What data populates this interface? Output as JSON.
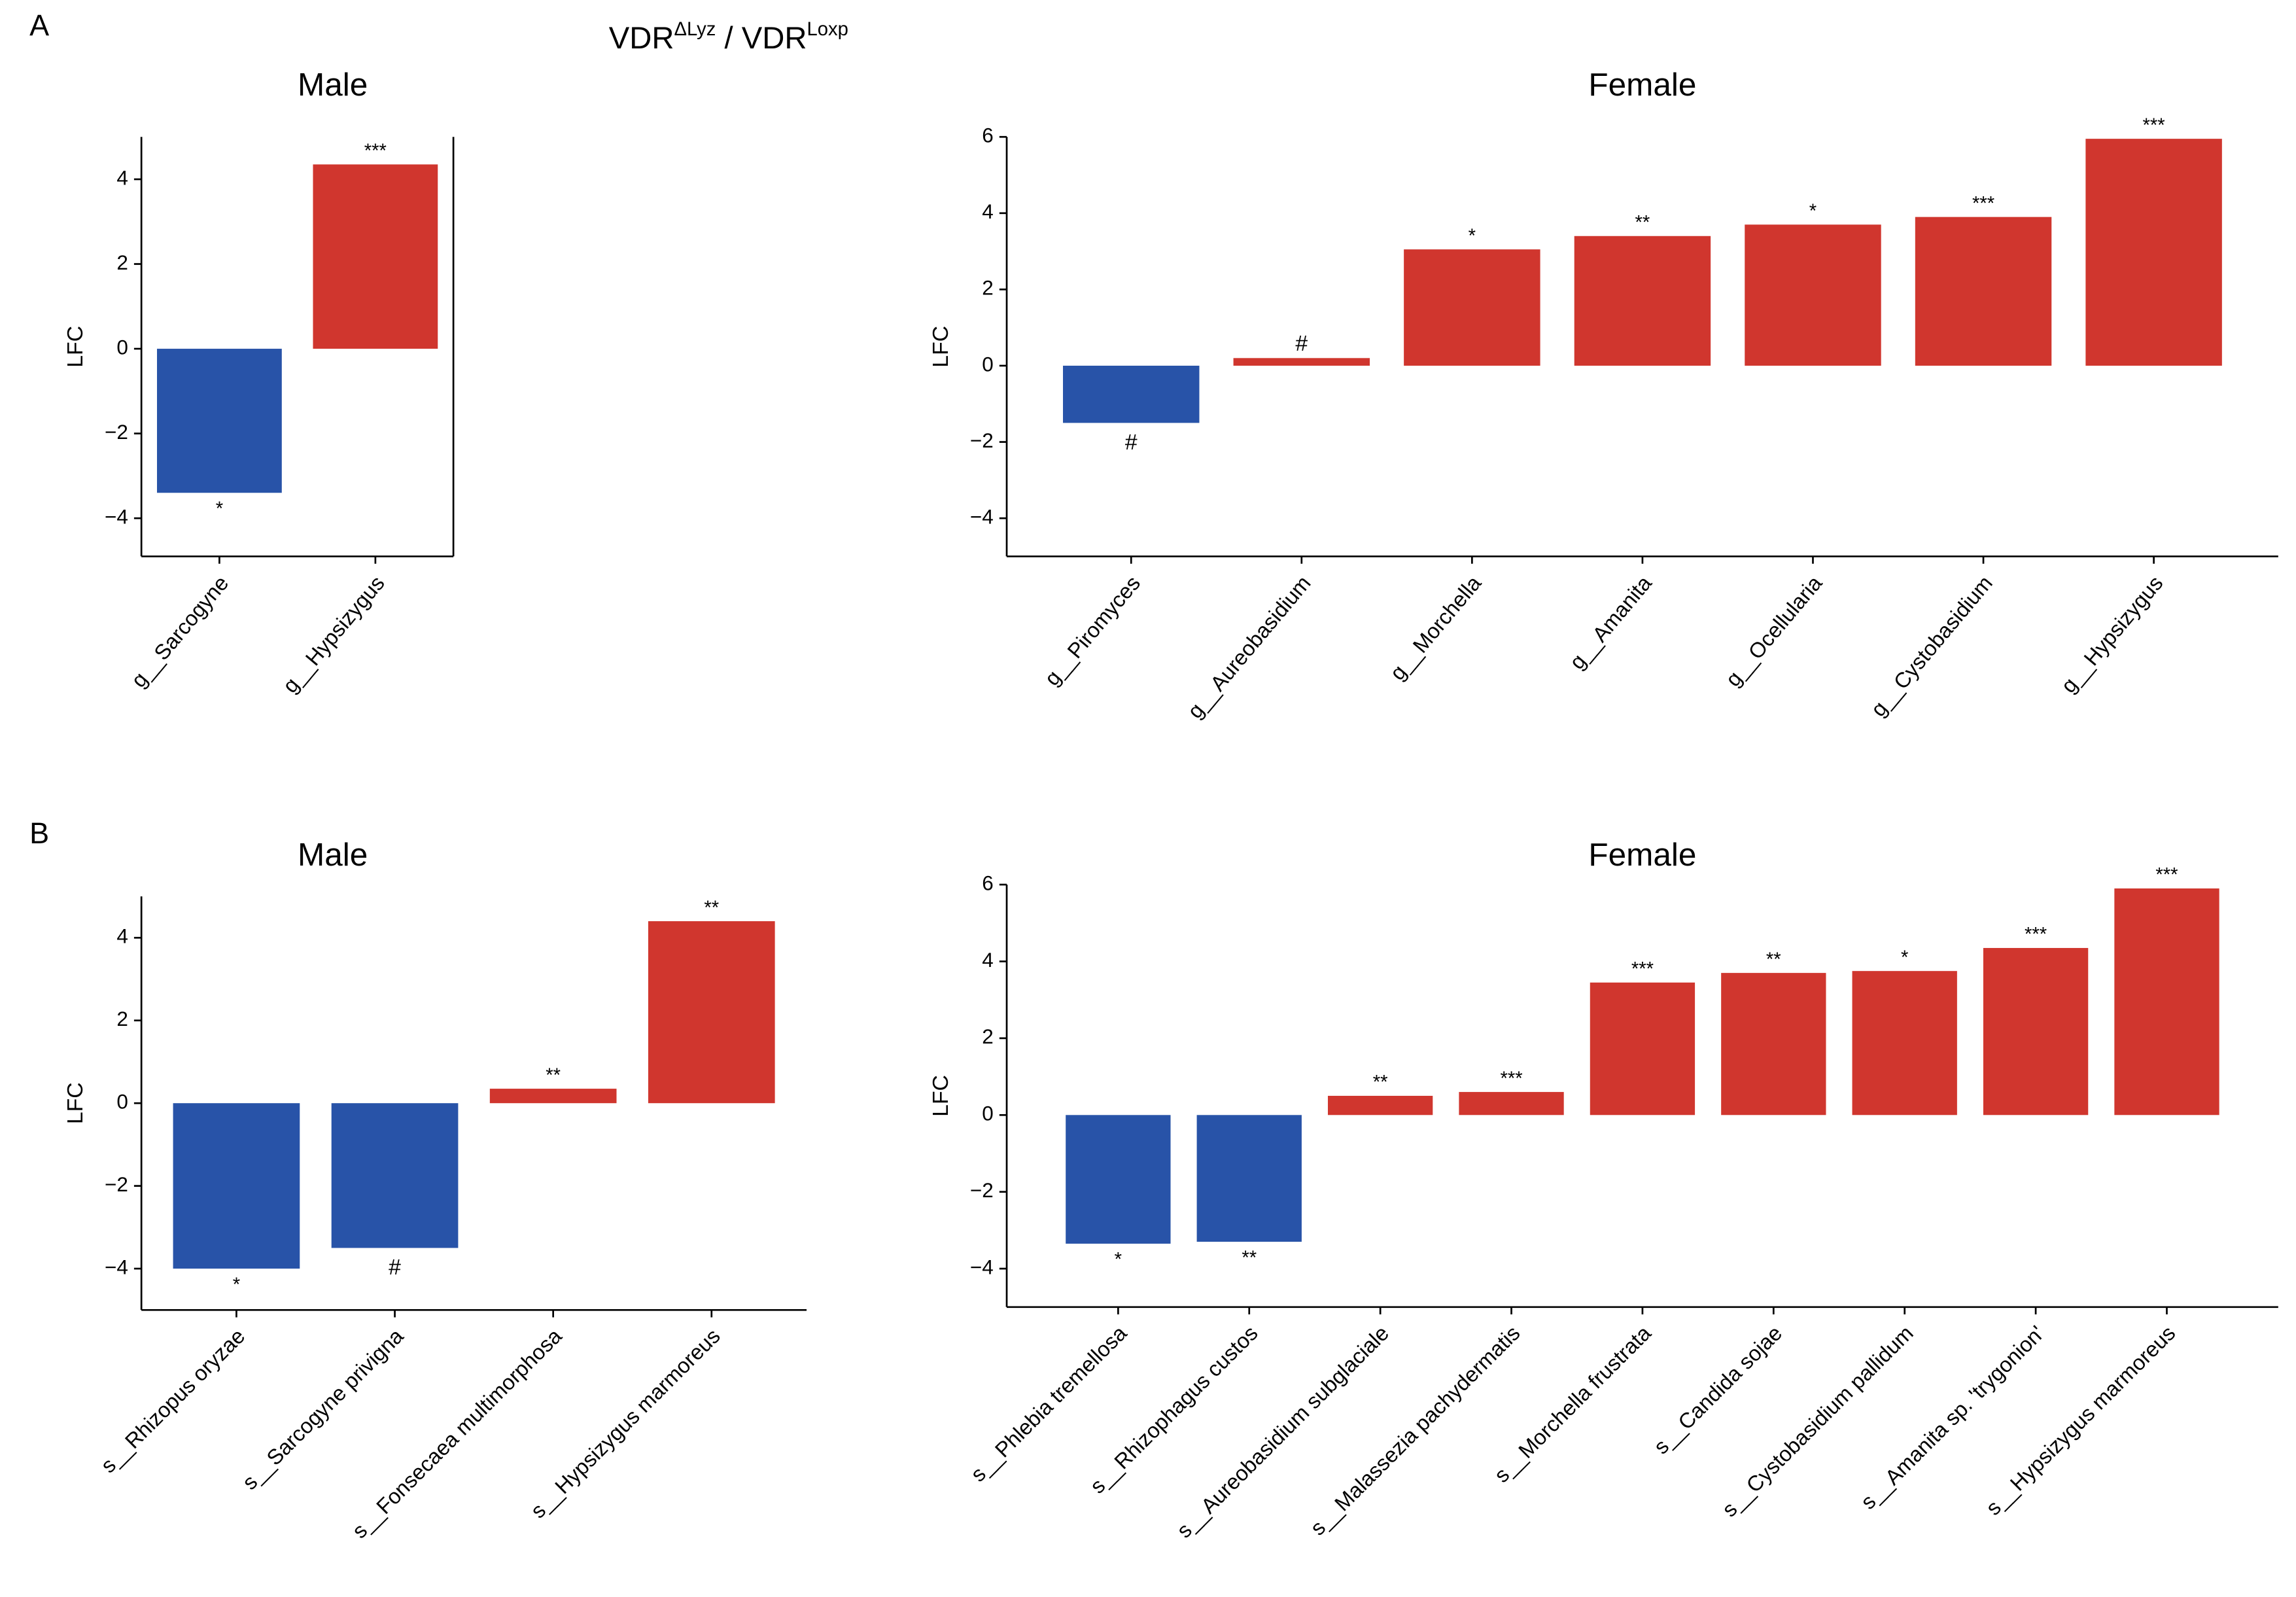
{
  "header": {
    "title": [
      "VDR",
      "ΔLyz",
      " / VDR",
      "Loxp"
    ]
  },
  "panels": [
    "A",
    "B"
  ],
  "chart_data": [
    {
      "type": "bar",
      "title": "Male",
      "ylabel": "LFC",
      "categories": [
        "g__Sarcogyne",
        "g__Hypsizygus"
      ],
      "values": [
        -3.4,
        4.35
      ],
      "colors": [
        "#2853a8",
        "#d0362e"
      ],
      "category_colors": [
        "#000000",
        "#7b2fa0"
      ],
      "annotations": [
        "*",
        "***"
      ],
      "ylim": [
        -4.9,
        5
      ],
      "yticks": [
        {
          "value": -4,
          "label": "−4"
        },
        {
          "value": -2,
          "label": "−2"
        },
        0,
        2,
        4
      ]
    },
    {
      "type": "bar",
      "title": "Female",
      "ylabel": "LFC",
      "categories": [
        "g__Piromyces",
        "g__Aureobasidium",
        "g__Morchella",
        "g__Amanita",
        "g__Ocellularia",
        "g__Cystobasidium",
        "g__Hypsizygus"
      ],
      "values": [
        -1.5,
        0.2,
        3.05,
        3.4,
        3.7,
        3.9,
        5.95
      ],
      "colors": [
        "#2853a8",
        "#d0362e",
        "#d0362e",
        "#d0362e",
        "#d0362e",
        "#d0362e",
        "#d0362e"
      ],
      "category_colors": [
        "#000000",
        "#000000",
        "#000000",
        "#000000",
        "#000000",
        "#000000",
        "#7b2fa0"
      ],
      "annotations": [
        "#",
        "#",
        "*",
        "**",
        "*",
        "***",
        "***"
      ],
      "ylim": [
        -5,
        6
      ],
      "yticks": [
        {
          "value": -4,
          "label": "−4"
        },
        {
          "value": -2,
          "label": "−2"
        },
        0,
        2,
        4,
        6
      ]
    },
    {
      "type": "bar",
      "title": "Male",
      "ylabel": "LFC",
      "categories": [
        "s__Rhizopus oryzae",
        "s__Sarcogyne privigna",
        "s__Fonsecaea multimorphosa",
        "s__Hypsizygus marmoreus"
      ],
      "values": [
        -4.0,
        -3.5,
        0.35,
        4.4
      ],
      "colors": [
        "#2853a8",
        "#2853a8",
        "#d0362e",
        "#d0362e"
      ],
      "category_colors": [
        "#000000",
        "#000000",
        "#000000",
        "#7b2fa0"
      ],
      "annotations": [
        "*",
        "#",
        "**",
        "**"
      ],
      "ylim": [
        -5,
        5
      ],
      "yticks": [
        {
          "value": -4,
          "label": "−4"
        },
        {
          "value": -2,
          "label": "−2"
        },
        0,
        2,
        4
      ]
    },
    {
      "type": "bar",
      "title": "Female",
      "ylabel": "LFC",
      "categories": [
        "s__Phlebia tremellosa",
        "s__Rhizophagus custos",
        "s__Aureobasidium subglaciale",
        "s__Malassezia pachydermatis",
        "s__Morchella frustrata",
        "s__Candida sojae",
        "s__Cystobasidium pallidum",
        "s__Amanita sp. 'trygonion'",
        "s__Hypsizygus marmoreus"
      ],
      "values": [
        -3.35,
        -3.3,
        0.5,
        0.6,
        3.45,
        3.7,
        3.75,
        4.35,
        5.9
      ],
      "colors": [
        "#2853a8",
        "#2853a8",
        "#d0362e",
        "#d0362e",
        "#d0362e",
        "#d0362e",
        "#d0362e",
        "#d0362e",
        "#d0362e"
      ],
      "category_colors": [
        "#000000",
        "#000000",
        "#000000",
        "#000000",
        "#000000",
        "#000000",
        "#000000",
        "#000000",
        "#7b2fa0"
      ],
      "annotations": [
        "*",
        "**",
        "**",
        "***",
        "***",
        "**",
        "*",
        "***",
        "***"
      ],
      "ylim": [
        -5,
        6
      ],
      "yticks": [
        {
          "value": -4,
          "label": "−4"
        },
        {
          "value": -2,
          "label": "−2"
        },
        0,
        2,
        4,
        6
      ]
    }
  ]
}
